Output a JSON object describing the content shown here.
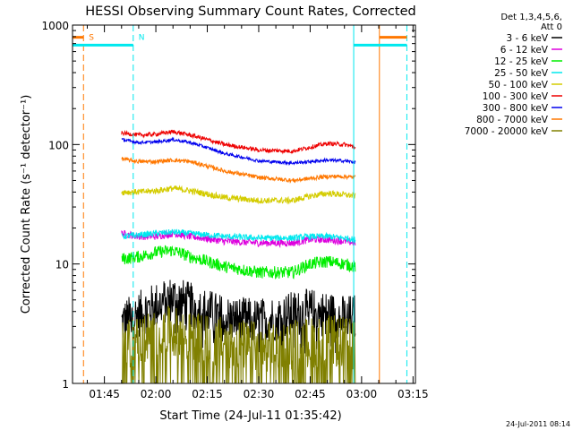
{
  "chart_data": {
    "type": "line",
    "title": "HESSI Observing Summary Count Rates, Corrected",
    "xlabel": "Start Time (24-Jul-11 01:35:42)",
    "ylabel": "Corrected Count Rate (s⁻¹ detector⁻¹)",
    "yscale": "log",
    "xlim": [
      95.7,
      195.7
    ],
    "ylim": [
      1,
      1000
    ],
    "x_ticks": [
      {
        "label": "01:45",
        "value": 105
      },
      {
        "label": "02:00",
        "value": 120
      },
      {
        "label": "02:15",
        "value": 135
      },
      {
        "label": "02:30",
        "value": 150
      },
      {
        "label": "02:45",
        "value": 165
      },
      {
        "label": "03:00",
        "value": 180
      },
      {
        "label": "03:15",
        "value": 195
      }
    ],
    "y_ticks": [
      {
        "label": "1",
        "value": 1
      },
      {
        "label": "10",
        "value": 10
      },
      {
        "label": "100",
        "value": 100
      },
      {
        "label": "1000",
        "value": 1000
      }
    ],
    "legend_position": "right",
    "legend_header": [
      "Det 1,3,4,5,6,",
      "Att 0"
    ],
    "x_unit": "minutes after 00:00 UT",
    "series": [
      {
        "name": "3 - 6 keV",
        "color": "#000000",
        "x": [
          110,
          115,
          120,
          125,
          130,
          140,
          150,
          160,
          165,
          170,
          175,
          178.2
        ],
        "values": [
          3.2,
          3.8,
          4.5,
          5.2,
          4.5,
          3.5,
          3.3,
          3.8,
          4.0,
          3.8,
          3.5,
          3.6
        ]
      },
      {
        "name": "6 - 12 keV",
        "color": "#dd00dd",
        "x": [
          110,
          115,
          120,
          125,
          130,
          140,
          150,
          160,
          165,
          170,
          175,
          178.2
        ],
        "values": [
          18,
          17,
          17,
          18,
          17,
          15.5,
          15,
          15,
          16,
          16,
          15.5,
          15
        ]
      },
      {
        "name": "12 - 25 keV",
        "color": "#00ee00",
        "x": [
          110,
          115,
          120,
          125,
          130,
          140,
          150,
          160,
          165,
          170,
          175,
          178.2
        ],
        "values": [
          11,
          11.5,
          12.5,
          13,
          11.5,
          9.5,
          8.5,
          8.5,
          10,
          10.5,
          10,
          9.5
        ]
      },
      {
        "name": "25 - 50 keV",
        "color": "#00e8ee",
        "x": [
          110,
          115,
          120,
          125,
          130,
          140,
          150,
          160,
          165,
          170,
          175,
          178.2
        ],
        "values": [
          17,
          17.5,
          18,
          18.5,
          18,
          17,
          16.5,
          16.5,
          17,
          17,
          16.5,
          16
        ]
      },
      {
        "name": "50 - 100 keV",
        "color": "#d4cc00",
        "x": [
          110,
          115,
          120,
          125,
          130,
          140,
          150,
          160,
          165,
          170,
          175,
          178.2
        ],
        "values": [
          40,
          40,
          41,
          43,
          41,
          36,
          34,
          34,
          37,
          39,
          38,
          37
        ]
      },
      {
        "name": "100 - 300 keV",
        "color": "#ee0000",
        "x": [
          110,
          115,
          120,
          125,
          130,
          140,
          150,
          160,
          165,
          170,
          175,
          178.2
        ],
        "values": [
          125,
          120,
          122,
          128,
          120,
          100,
          90,
          88,
          95,
          102,
          100,
          95
        ]
      },
      {
        "name": "300 - 800 keV",
        "color": "#0000ee",
        "x": [
          110,
          115,
          120,
          125,
          130,
          140,
          150,
          160,
          165,
          170,
          175,
          178.2
        ],
        "values": [
          110,
          104,
          105,
          110,
          104,
          84,
          73,
          70,
          72,
          74,
          73,
          71
        ]
      },
      {
        "name": "800 - 7000 keV",
        "color": "#ff7700",
        "x": [
          110,
          115,
          120,
          125,
          130,
          140,
          150,
          160,
          165,
          170,
          175,
          178.2
        ],
        "values": [
          76,
          72,
          72,
          74,
          72,
          60,
          53,
          50,
          52,
          54,
          54,
          53
        ]
      },
      {
        "name": "7000 - 20000 keV",
        "color": "#808000",
        "x": [
          110,
          115,
          120,
          125,
          130,
          140,
          150,
          160,
          165,
          170,
          175,
          178.2
        ],
        "values": [
          2.0,
          2.3,
          2.6,
          2.7,
          2.4,
          2.2,
          2.0,
          2.1,
          2.2,
          2.3,
          2.2,
          2.1
        ]
      }
    ],
    "markers": [
      {
        "label": "S",
        "x": 98.9,
        "color": "#ff7700",
        "style": "dashed"
      },
      {
        "label": "N",
        "x": 113.4,
        "color": "#00e8ee",
        "style": "dashed"
      },
      {
        "label": "",
        "x": 177.7,
        "color": "#00e8ee",
        "style": "solid"
      },
      {
        "label": "",
        "x": 185.2,
        "color": "#ff7700",
        "style": "solid"
      },
      {
        "label": "",
        "x": 193.2,
        "color": "#00e8ee",
        "style": "dashed"
      }
    ],
    "bars": [
      {
        "color": "#00e8ee",
        "from": 95.7,
        "to": 113.4,
        "level": 680
      },
      {
        "color": "#ff7700",
        "from": 95.7,
        "to": 98.9,
        "level": 790
      },
      {
        "color": "#00e8ee",
        "from": 177.7,
        "to": 193.2,
        "level": 680
      },
      {
        "color": "#ff7700",
        "from": 185.2,
        "to": 193.2,
        "level": 790
      }
    ],
    "footer": "24-Jul-2011 08:14"
  }
}
